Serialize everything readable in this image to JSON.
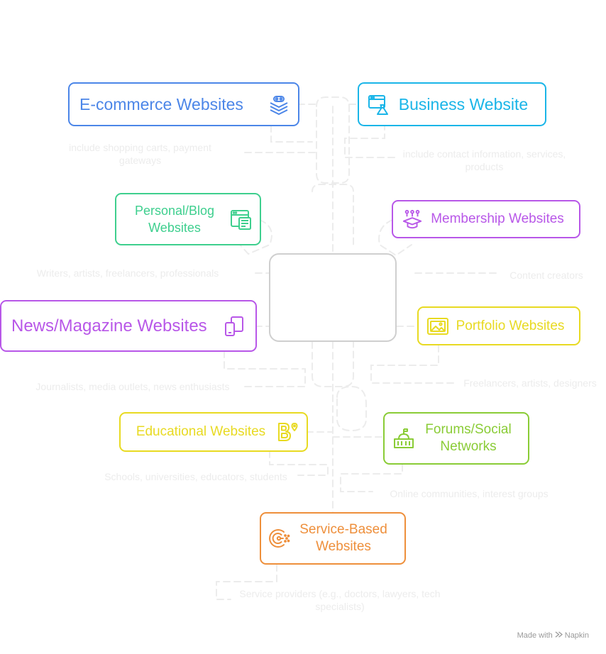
{
  "colors": {
    "blue": "#4C86E8",
    "cyan": "#1AB5E8",
    "green": "#3ECF8E",
    "purple": "#B857E8",
    "yellow": "#E8DA22",
    "lime": "#8ACC36",
    "orange": "#EE8F3B",
    "connector": "#ececec",
    "hub_border": "#cfcfcf"
  },
  "nodes": {
    "ecommerce": {
      "label": "E-commerce Websites",
      "icon": "layers-icon",
      "note": "include shopping carts, payment gateways"
    },
    "business": {
      "label": "Business Website",
      "icon": "browser-flask-icon",
      "note": "include contact information, services, products"
    },
    "personal": {
      "label": "Personal/Blog Websites",
      "icon": "browser-document-icon",
      "note": "Writers, artists, freelancers, professionals"
    },
    "membership": {
      "label": "Membership Websites",
      "icon": "graduation-cap-icon",
      "note": "Content creators"
    },
    "news": {
      "label": "News/Magazine Websites",
      "icon": "devices-icon",
      "note": "Journalists, media outlets, news enthusiasts"
    },
    "portfolio": {
      "label": "Portfolio Websites",
      "icon": "image-frame-icon",
      "note": "Freelancers, artists, designers"
    },
    "educational": {
      "label": "Educational Websites",
      "icon": "b-pin-icon",
      "note": "Schools, universities, educators, students"
    },
    "forums": {
      "label": "Forums/Social Networks",
      "icon": "building-icon",
      "note": "Online communities, interest groups"
    },
    "service": {
      "label": "Service-Based Websites",
      "icon": "service-c-icon",
      "note": "Service providers (e.g., doctors, lawyers, tech specialists)"
    }
  },
  "footer": {
    "made_with": "Made with",
    "brand": "Napkin"
  }
}
